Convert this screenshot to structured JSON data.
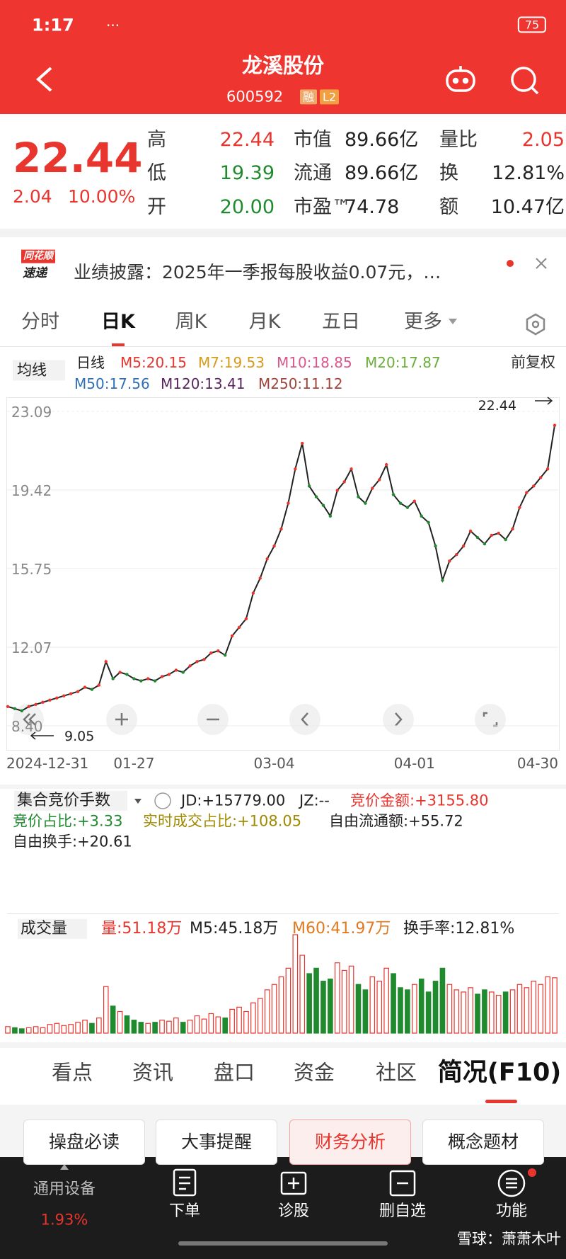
{
  "status_bar": {
    "time": "1:17",
    "indicator": "···",
    "battery": "75"
  },
  "header": {
    "title": "龙溪股份",
    "code": "600592",
    "tags": [
      "融",
      "L2"
    ]
  },
  "quote": {
    "price": "22.44",
    "change": "2.04",
    "change_pct": "10.00%",
    "stats": [
      {
        "label": "高",
        "value": "22.44"
      },
      {
        "label": "低",
        "value": "19.39"
      },
      {
        "label": "开",
        "value": "20.00"
      },
      {
        "label": "市值",
        "value": "89.66亿"
      },
      {
        "label": "流通",
        "value": "89.66亿"
      },
      {
        "label": "市盈™",
        "value": "74.78"
      },
      {
        "label": "量比",
        "value": "2.05"
      },
      {
        "label": "换",
        "value": "12.81%"
      },
      {
        "label": "额",
        "value": "10.47亿"
      }
    ]
  },
  "news": {
    "badge": [
      "同花顺",
      "速递"
    ],
    "text": "业绩披露：2025年一季报每股收益0.07元，…"
  },
  "period_tabs": {
    "items": [
      "分时",
      "日K",
      "周K",
      "月K",
      "五日",
      "更多"
    ],
    "active": 1
  },
  "indicators": {
    "selector": "均线",
    "items": [
      "日线",
      "M5:20.15",
      "M7:19.53",
      "M10:18.85",
      "M20:17.87",
      "M50:17.56",
      "M120:13.41",
      "M250:11.12"
    ],
    "adjust": "前复权"
  },
  "chart_data": [
    {
      "type": "line",
      "x": [
        "2024-12-31",
        null,
        null,
        null,
        null,
        null,
        null,
        null,
        null,
        null,
        null,
        null,
        null,
        null,
        null,
        null,
        null,
        null,
        "01-27",
        null,
        null,
        null,
        null,
        null,
        null,
        null,
        null,
        null,
        null,
        null,
        null,
        null,
        null,
        null,
        null,
        null,
        null,
        null,
        "03-04",
        null,
        null,
        null,
        null,
        null,
        null,
        null,
        null,
        null,
        null,
        null,
        null,
        null,
        null,
        null,
        null,
        null,
        null,
        null,
        "04-01",
        null,
        null,
        null,
        null,
        null,
        null,
        null,
        null,
        null,
        null,
        null,
        null,
        null,
        null,
        null,
        null,
        null,
        null,
        null,
        "04-30"
      ],
      "values": [
        9.3,
        9.2,
        9.1,
        9.3,
        9.4,
        9.5,
        9.6,
        9.7,
        9.8,
        9.9,
        10.0,
        10.2,
        10.1,
        10.3,
        11.4,
        10.6,
        10.9,
        10.8,
        10.6,
        10.5,
        10.6,
        10.5,
        10.7,
        10.8,
        11.0,
        10.9,
        11.2,
        11.4,
        11.5,
        11.8,
        11.9,
        11.7,
        12.6,
        13.0,
        13.4,
        14.6,
        15.3,
        16.2,
        16.8,
        17.6,
        18.8,
        20.4,
        21.6,
        19.6,
        19.1,
        18.7,
        18.2,
        19.4,
        19.8,
        20.4,
        19.1,
        18.8,
        19.5,
        19.9,
        20.6,
        19.2,
        18.8,
        18.6,
        18.9,
        18.2,
        17.9,
        16.8,
        15.2,
        16.1,
        16.4,
        16.8,
        17.5,
        17.2,
        16.9,
        17.3,
        17.4,
        17.1,
        17.6,
        18.6,
        19.3,
        19.6,
        20.0,
        20.4,
        22.44
      ],
      "color": "#222222",
      "ylim": [
        8.4,
        23.09
      ],
      "yticks": [
        {
          "value": 8.4,
          "label": "8.40"
        },
        12.07,
        15.75,
        19.42,
        23.09
      ],
      "grid": true,
      "max_label": 22.44,
      "min_label": 9.05
    },
    {
      "type": "bar",
      "title": "成交量",
      "legend": [
        "量:51.18万",
        "M5:45.18万",
        "M60:41.97万",
        "换手率:12.81%"
      ],
      "values": [
        6,
        5,
        4,
        5,
        6,
        5,
        8,
        9,
        7,
        8,
        10,
        12,
        9,
        14,
        43,
        25,
        20,
        16,
        12,
        10,
        9,
        10,
        12,
        11,
        14,
        10,
        12,
        16,
        13,
        18,
        15,
        14,
        22,
        24,
        20,
        28,
        32,
        40,
        45,
        52,
        60,
        91,
        72,
        55,
        60,
        48,
        50,
        65,
        58,
        62,
        45,
        40,
        52,
        48,
        60,
        55,
        42,
        40,
        45,
        50,
        38,
        48,
        60,
        45,
        40,
        38,
        42,
        36,
        40,
        38,
        35,
        38,
        40,
        45,
        42,
        48,
        45,
        52,
        51.18
      ],
      "up_color": "#e8352e",
      "down_color": "#1f8a2e"
    }
  ],
  "auction": {
    "title": "集合竞价手数",
    "items": [
      "JD:+15779.00",
      "JZ:--",
      "竞价金额:+3155.80",
      "竞价占比:+3.33",
      "实时成交占比:+108.05",
      "自由流通额:+55.72",
      "自由换手:+20.61"
    ]
  },
  "section_tabs": [
    "看点",
    "资讯",
    "盘口",
    "资金",
    "社区",
    "简况(F10)"
  ],
  "buttons": [
    "操盘必读",
    "大事提醒",
    "财务分析",
    "概念题材"
  ],
  "nav": {
    "items": [
      "通用设备",
      "下单",
      "诊股",
      "删自选",
      "功能"
    ],
    "sector_change": "1.93%"
  },
  "watermark": "雪球：萧萧木叶"
}
